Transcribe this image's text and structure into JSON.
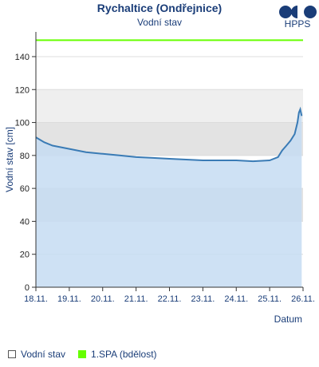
{
  "header": {
    "title": "Rychaltice (Ondřejnice)",
    "subtitle": "Vodní stav"
  },
  "logo": {
    "text": "HPPS",
    "icon": "hpps-logo-icon"
  },
  "legend": [
    {
      "label": "Vodní stav",
      "swatch": "outline"
    },
    {
      "label": "1.SPA (bdělost)",
      "swatch": "fill",
      "color": "#66ff00"
    }
  ],
  "chart_data": {
    "type": "area",
    "ylabel": "Vodní stav [cm]",
    "xlabel": "Datum",
    "ylim": [
      0,
      155
    ],
    "yticks": [
      0,
      20,
      40,
      60,
      80,
      100,
      120,
      140
    ],
    "xlim": [
      "2021-11-18T00:00",
      "2021-11-26T00:00"
    ],
    "xticks": [
      "18.11.",
      "19.11.",
      "20.11.",
      "21.11.",
      "22.11.",
      "23.11.",
      "24.11.",
      "25.11.",
      "26.11."
    ],
    "grid": true,
    "bands": [
      {
        "from": 80,
        "to": 100,
        "color": "#e3e3e3"
      },
      {
        "from": 100,
        "to": 120,
        "color": "#efefef"
      },
      {
        "from": 40,
        "to": 60,
        "color": "#e3e3e3"
      }
    ],
    "threshold": {
      "name": "1.SPA (bdělost)",
      "value": 150,
      "color": "#66ff00"
    },
    "series": [
      {
        "name": "Vodní stav",
        "color": "#3a7bb5",
        "fill": "#c6dcf2",
        "points": [
          [
            "2021-11-18T00:00",
            91
          ],
          [
            "2021-11-18T06:00",
            88
          ],
          [
            "2021-11-18T12:00",
            86
          ],
          [
            "2021-11-19T00:00",
            84
          ],
          [
            "2021-11-19T12:00",
            82
          ],
          [
            "2021-11-20T00:00",
            81
          ],
          [
            "2021-11-20T12:00",
            80
          ],
          [
            "2021-11-21T00:00",
            79
          ],
          [
            "2021-11-21T12:00",
            78.5
          ],
          [
            "2021-11-22T00:00",
            78
          ],
          [
            "2021-11-22T12:00",
            77.5
          ],
          [
            "2021-11-23T00:00",
            77
          ],
          [
            "2021-11-23T12:00",
            77
          ],
          [
            "2021-11-24T00:00",
            77
          ],
          [
            "2021-11-24T12:00",
            76.5
          ],
          [
            "2021-11-25T00:00",
            77
          ],
          [
            "2021-11-25T06:00",
            79
          ],
          [
            "2021-11-25T09:00",
            83
          ],
          [
            "2021-11-25T12:00",
            86
          ],
          [
            "2021-11-25T15:00",
            89
          ],
          [
            "2021-11-25T18:00",
            93
          ],
          [
            "2021-11-25T20:00",
            100
          ],
          [
            "2021-11-25T21:00",
            106
          ],
          [
            "2021-11-25T22:00",
            108
          ],
          [
            "2021-11-25T23:00",
            104
          ]
        ]
      }
    ]
  }
}
